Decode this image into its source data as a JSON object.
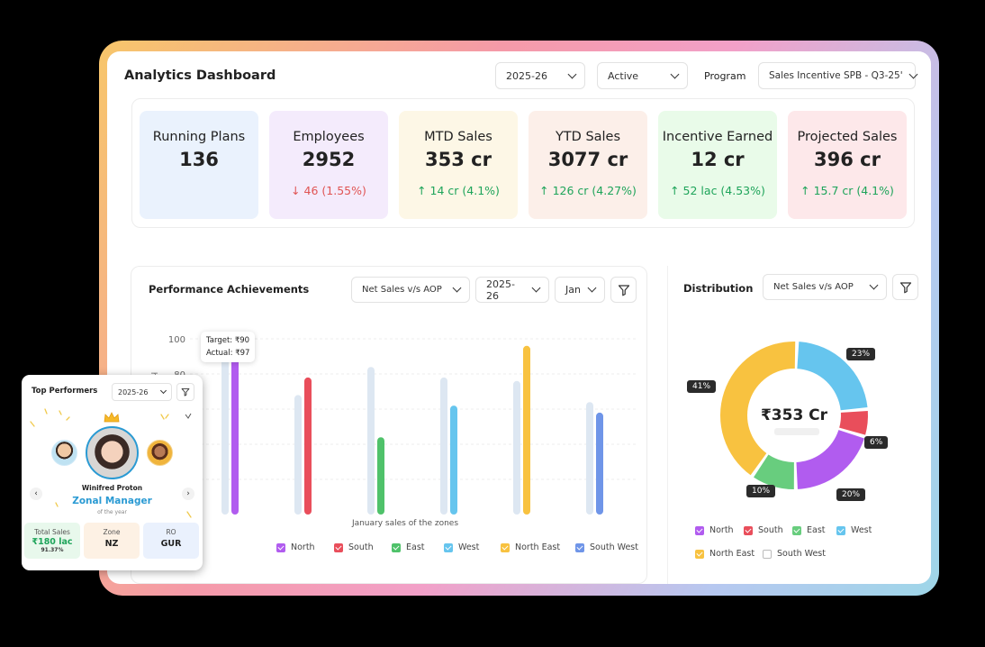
{
  "header": {
    "title": "Analytics Dashboard",
    "year_select": "2025-26",
    "status_select": "Active",
    "program_label": "Program",
    "program_select": "Sales Incentive SPB - Q3-25'"
  },
  "kpis": [
    {
      "title": "Running Plans",
      "value": "136",
      "delta": "",
      "trend": "none",
      "bg": "#eaf2fd"
    },
    {
      "title": "Employees",
      "value": "2952",
      "delta": "↓ 46 (1.55%)",
      "trend": "down",
      "bg": "#f4ebfc"
    },
    {
      "title": "MTD Sales",
      "value": "353 cr",
      "delta": "↑ 14 cr (4.1%)",
      "trend": "up",
      "bg": "#fdf7e6"
    },
    {
      "title": "YTD Sales",
      "value": "3077 cr",
      "delta": "↑ 126 cr (4.27%)",
      "trend": "up",
      "bg": "#fcefe9"
    },
    {
      "title": "Incentive Earned",
      "value": "12 cr",
      "delta": "↑ 52 lac (4.53%)",
      "trend": "up",
      "bg": "#e9fbe9"
    },
    {
      "title": "Projected Sales",
      "value": "396 cr",
      "delta": "↑ 15.7 cr (4.1%)",
      "trend": "up",
      "bg": "#fde8ea"
    }
  ],
  "performance": {
    "title": "Performance Achievements",
    "metric_select": "Net Sales v/s AOP",
    "year_select": "2025-26",
    "month_select": "Jan",
    "tooltip": {
      "target": "Target: ₹90",
      "actual": "Actual: ₹97"
    }
  },
  "chart_data": {
    "type": "bar",
    "categories": [
      "North",
      "South",
      "East",
      "West",
      "North East",
      "South West"
    ],
    "series": [
      {
        "name": "Target",
        "values": [
          90,
          68,
          84,
          78,
          76,
          64
        ],
        "color": "#dde7f2"
      },
      {
        "name": "Actual",
        "values": [
          97,
          78,
          44,
          62,
          96,
          58
        ],
        "colors": [
          "#b15cef",
          "#e94e5b",
          "#4fc26a",
          "#66c5ee",
          "#f8c240",
          "#6f95e8"
        ]
      }
    ],
    "ytick_labels": [
      "100",
      "80"
    ],
    "ylabel_fragment": "h)",
    "xlabel": "January sales of the zones",
    "ylim": [
      0,
      100
    ],
    "grid": true,
    "legend": [
      {
        "label": "North",
        "color": "#b15cef"
      },
      {
        "label": "South",
        "color": "#e94e5b"
      },
      {
        "label": "East",
        "color": "#4fc26a"
      },
      {
        "label": "West",
        "color": "#66c5ee"
      },
      {
        "label": "North East",
        "color": "#f8c240"
      },
      {
        "label": "South West",
        "color": "#6f95e8"
      }
    ]
  },
  "distribution": {
    "title": "Distribution",
    "metric_select": "Net Sales v/s AOP",
    "center_value": "₹353 Cr",
    "donut": {
      "type": "pie",
      "slices": [
        {
          "label": "North",
          "value": 20,
          "pct": "20%",
          "color": "#b15cef"
        },
        {
          "label": "South",
          "value": 6,
          "pct": "6%",
          "color": "#e94e5b"
        },
        {
          "label": "East",
          "value": 10,
          "pct": "10%",
          "color": "#68cd7e"
        },
        {
          "label": "West",
          "value": 23,
          "pct": "23%",
          "color": "#66c5ee"
        },
        {
          "label": "North East",
          "value": 41,
          "pct": "41%",
          "color": "#f8c240"
        },
        {
          "label": "South West",
          "value": 0,
          "pct": "",
          "color": "#ffffff"
        }
      ]
    },
    "legend": [
      {
        "label": "North",
        "color": "#b15cef"
      },
      {
        "label": "South",
        "color": "#e94e5b"
      },
      {
        "label": "East",
        "color": "#68cd7e"
      },
      {
        "label": "West",
        "color": "#66c5ee"
      },
      {
        "label": "North East",
        "color": "#f8c240"
      },
      {
        "label": "South West",
        "color": "#ffffff"
      }
    ]
  },
  "top_performers": {
    "title": "Top Performers",
    "year_select": "2025-26",
    "name": "Winifred Proton",
    "role": "Zonal Manager",
    "subtitle": "of the year",
    "stats": [
      {
        "label": "Total Sales",
        "value": "₹180 lac",
        "extra": "91.37%",
        "bg": "#e8f8ec"
      },
      {
        "label": "Zone",
        "value": "NZ",
        "extra": "",
        "bg": "#fdf1e4"
      },
      {
        "label": "RO",
        "value": "GUR",
        "extra": "",
        "bg": "#eaf1fd"
      }
    ]
  }
}
